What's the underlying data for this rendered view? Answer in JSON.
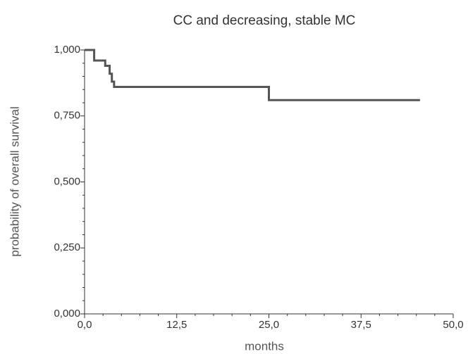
{
  "chart_data": {
    "type": "line",
    "step": "post",
    "title": "CC and decreasing, stable MC",
    "x_label": "months",
    "y_label": "probability of overall survival",
    "x": [
      0,
      1.3,
      2.8,
      3.4,
      3.7,
      4.0,
      25.0,
      45.5
    ],
    "series": [
      {
        "color": "#555555",
        "values": [
          1.0,
          0.96,
          0.94,
          0.91,
          0.88,
          0.86,
          0.81,
          0.81
        ]
      }
    ],
    "xlim": [
      0,
      50
    ],
    "ylim": [
      0,
      1
    ],
    "xticks": [
      {
        "value": 0,
        "label": "0,0"
      },
      {
        "value": 12.5,
        "label": "12,5"
      },
      {
        "value": 25,
        "label": "25,0"
      },
      {
        "value": 37.5,
        "label": "37,5"
      },
      {
        "value": 50,
        "label": "50,0"
      }
    ],
    "yticks": [
      {
        "value": 0,
        "label": "0,000"
      },
      {
        "value": 0.25,
        "label": "0,250"
      },
      {
        "value": 0.5,
        "label": "0,500"
      },
      {
        "value": 0.75,
        "label": "0,750"
      },
      {
        "value": 1,
        "label": "1,000"
      }
    ],
    "minor_xticks": [
      2.5,
      5,
      7.5,
      10,
      15,
      17.5,
      20,
      22.5,
      27.5,
      30,
      32.5,
      35,
      40,
      42.5,
      45,
      47.5
    ],
    "minor_yticks": [
      0.05,
      0.1,
      0.15,
      0.2,
      0.3,
      0.35,
      0.4,
      0.45,
      0.55,
      0.6,
      0.65,
      0.7,
      0.8,
      0.85,
      0.9,
      0.95
    ]
  }
}
